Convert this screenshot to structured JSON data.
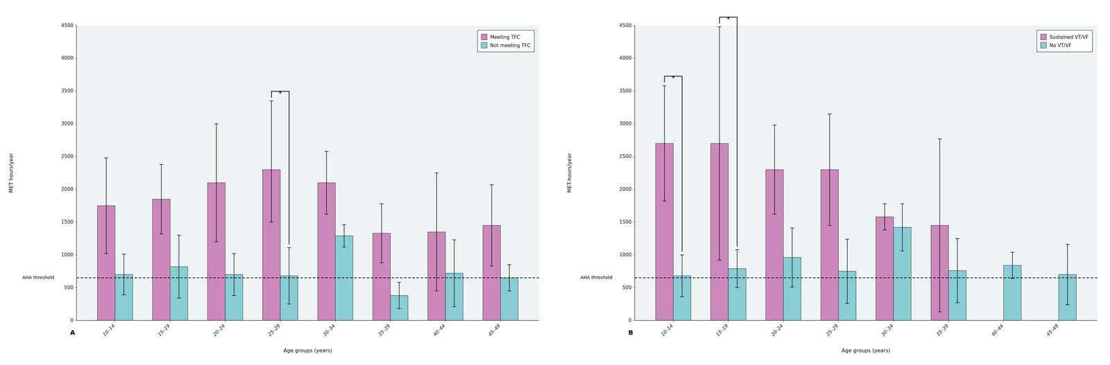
{
  "chart_data": [
    {
      "type": "bar",
      "panel": "A",
      "xlabel": "Age groups (years)",
      "ylabel": "MET hours/year",
      "categories": [
        "10–14",
        "15–19",
        "20–24",
        "25–29",
        "30–34",
        "35–39",
        "40–44",
        "45–49"
      ],
      "series": [
        {
          "name": "Meeting TFC",
          "color": "#cc88bb",
          "values": [
            1750,
            1850,
            2100,
            2300,
            2100,
            1330,
            1350,
            1450
          ],
          "err_upper": [
            730,
            530,
            900,
            1050,
            480,
            450,
            900,
            620
          ],
          "err_lower": [
            730,
            530,
            900,
            800,
            480,
            450,
            900,
            620
          ]
        },
        {
          "name": "Not meeting TFC",
          "color": "#88ccd4",
          "values": [
            700,
            820,
            700,
            680,
            1290,
            380,
            720,
            650
          ],
          "err_upper": [
            310,
            480,
            320,
            430,
            170,
            200,
            510,
            200
          ],
          "err_lower": [
            310,
            480,
            320,
            430,
            170,
            200,
            510,
            200
          ]
        }
      ],
      "reference_lines": [
        {
          "value": 650,
          "label": "AHA threshold"
        }
      ],
      "significance": {
        "categories": [
          "25–29"
        ],
        "label": "*"
      },
      "ylim": [
        0,
        4500
      ],
      "yticks": [
        0,
        500,
        1000,
        1500,
        2000,
        2500,
        3000,
        3500,
        4000,
        4500
      ],
      "grid": false,
      "legend": "upper right"
    },
    {
      "type": "bar",
      "panel": "B",
      "xlabel": "Age groups (years)",
      "ylabel": "MET-hours/year",
      "categories": [
        "10–14",
        "15–19",
        "20–24",
        "25–29",
        "30–34",
        "35–39",
        "40–44",
        "45–49"
      ],
      "series": [
        {
          "name": "Sustained VT/VF",
          "color": "#cc88bb",
          "values": [
            2700,
            2700,
            2300,
            2300,
            1580,
            1450,
            0,
            0
          ],
          "err_upper": [
            880,
            1780,
            680,
            850,
            200,
            1320,
            0,
            0
          ],
          "err_lower": [
            880,
            1780,
            680,
            850,
            200,
            1320,
            0,
            0
          ]
        },
        {
          "name": "No VT/VF",
          "color": "#88ccd4",
          "values": [
            680,
            790,
            960,
            750,
            1420,
            760,
            840,
            700
          ],
          "err_upper": [
            320,
            290,
            450,
            490,
            360,
            490,
            200,
            460
          ],
          "err_lower": [
            320,
            290,
            450,
            490,
            360,
            490,
            200,
            460
          ]
        }
      ],
      "reference_lines": [
        {
          "value": 650,
          "label": "AHA threshold"
        }
      ],
      "significance": {
        "categories": [
          "10–14",
          "15–19"
        ],
        "label": "*"
      },
      "ylim": [
        0,
        4500
      ],
      "yticks": [
        0,
        500,
        1000,
        1500,
        2000,
        2500,
        3000,
        3500,
        4000,
        4500
      ],
      "grid": false,
      "legend": "upper right"
    }
  ]
}
